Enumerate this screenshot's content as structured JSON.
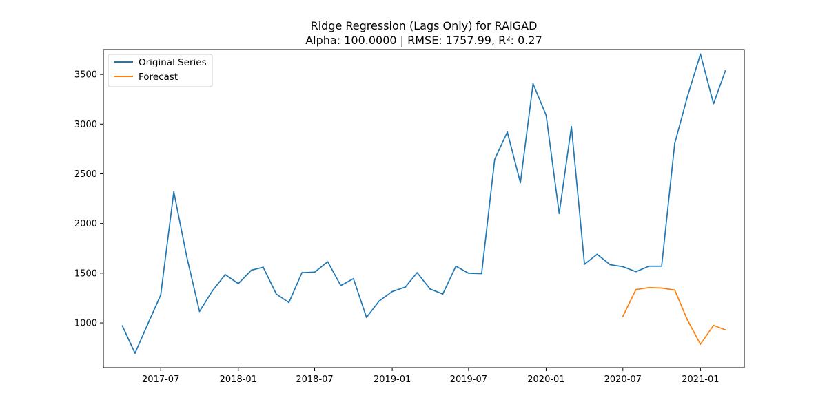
{
  "chart_data": {
    "type": "line",
    "title_line1": "Ridge Regression (Lags Only) for RAIGAD",
    "title_line2": "Alpha: 100.0000 | RMSE: 1757.99, R²: 0.27",
    "xlabel": "",
    "ylabel": "",
    "x_ticks": [
      "2017-07",
      "2018-01",
      "2018-07",
      "2019-01",
      "2019-07",
      "2020-01",
      "2020-07",
      "2021-01"
    ],
    "y_ticks": [
      1000,
      1500,
      2000,
      2500,
      3000,
      3500
    ],
    "xlim": [
      "2017-02-15",
      "2021-04-15"
    ],
    "ylim": [
      550,
      3750
    ],
    "grid": false,
    "legend_position": "top-left",
    "series": [
      {
        "name": "Original Series",
        "color": "#1f77b4",
        "x": [
          "2017-04-01",
          "2017-05-01",
          "2017-06-01",
          "2017-07-01",
          "2017-08-01",
          "2017-09-01",
          "2017-10-01",
          "2017-11-01",
          "2017-12-01",
          "2018-01-01",
          "2018-02-01",
          "2018-03-01",
          "2018-04-01",
          "2018-05-01",
          "2018-06-01",
          "2018-07-01",
          "2018-08-01",
          "2018-09-01",
          "2018-10-01",
          "2018-11-01",
          "2018-12-01",
          "2019-01-01",
          "2019-02-01",
          "2019-03-01",
          "2019-04-01",
          "2019-05-01",
          "2019-06-01",
          "2019-07-01",
          "2019-08-01",
          "2019-09-01",
          "2019-10-01",
          "2019-11-01",
          "2019-12-01",
          "2020-01-01",
          "2020-02-01",
          "2020-03-01",
          "2020-04-01",
          "2020-05-01",
          "2020-06-01",
          "2020-07-01",
          "2020-08-01",
          "2020-09-01",
          "2020-10-01",
          "2020-11-01",
          "2020-12-01",
          "2021-01-01",
          "2021-02-01",
          "2021-03-01"
        ],
        "values": [
          970,
          695,
          995,
          1280,
          2320,
          1660,
          1115,
          1325,
          1485,
          1395,
          1530,
          1560,
          1290,
          1205,
          1505,
          1510,
          1615,
          1375,
          1445,
          1055,
          1220,
          1315,
          1360,
          1505,
          1340,
          1290,
          1570,
          1500,
          1495,
          2645,
          2920,
          2410,
          3405,
          3090,
          2100,
          2975,
          1590,
          1690,
          1585,
          1565,
          1515,
          1570,
          1570,
          2805,
          3275,
          3705,
          3205,
          3535
        ]
      },
      {
        "name": "Forecast",
        "color": "#ff7f0e",
        "x": [
          "2020-07-01",
          "2020-08-01",
          "2020-09-01",
          "2020-10-01",
          "2020-11-01",
          "2020-12-01",
          "2021-01-01",
          "2021-02-01",
          "2021-03-01"
        ],
        "values": [
          1065,
          1335,
          1355,
          1350,
          1330,
          1030,
          785,
          975,
          930
        ]
      }
    ]
  }
}
